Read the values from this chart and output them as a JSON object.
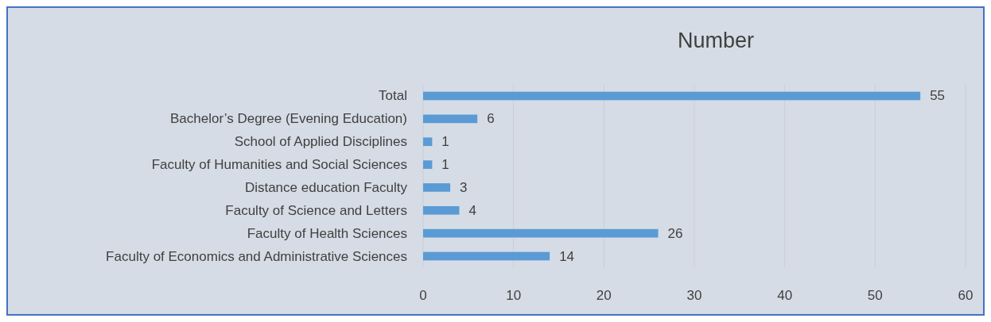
{
  "chart_data": {
    "type": "bar",
    "orientation": "horizontal",
    "title": "Number",
    "categories": [
      "Total",
      "Bachelor’s Degree (Evening Education)",
      "School of Applied Disciplines",
      "Faculty of Humanities and Social Sciences",
      "Distance education Faculty",
      "Faculty of Science and Letters",
      "Faculty of Health Sciences",
      "Faculty of Economics and Administrative Sciences"
    ],
    "values": [
      55,
      6,
      1,
      1,
      3,
      4,
      26,
      14
    ],
    "color": "#5b9bd5",
    "xlim": [
      0,
      60
    ],
    "xticks": [
      0,
      10,
      20,
      30,
      40,
      50,
      60
    ],
    "grid": "x",
    "data_labels": true
  }
}
